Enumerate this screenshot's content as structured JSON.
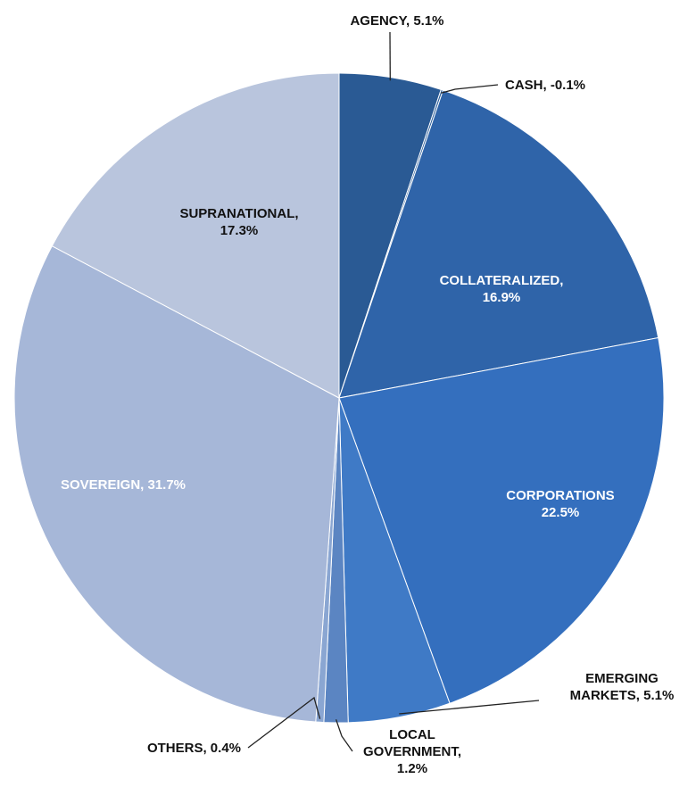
{
  "chart_data": {
    "type": "pie",
    "title": "",
    "slices": [
      {
        "name": "AGENCY",
        "value": 5.1,
        "label": [
          "AGENCY, 5.1%"
        ],
        "color": "#2a5a94"
      },
      {
        "name": "CASH",
        "value": -0.1,
        "label": [
          "CASH, -0.1%"
        ],
        "color": "#2c5e9a"
      },
      {
        "name": "COLLATERALIZED",
        "value": 16.9,
        "label": [
          "COLLATERALIZED,",
          "16.9%"
        ],
        "color": "#2f64a9"
      },
      {
        "name": "CORPORATIONS",
        "value": 22.5,
        "label": [
          "CORPORATIONS",
          "22.5%"
        ],
        "color": "#346fbe"
      },
      {
        "name": "EMERGING MARKETS",
        "value": 5.1,
        "label": [
          "EMERGING",
          "MARKETS, 5.1%"
        ],
        "color": "#3f7ac6"
      },
      {
        "name": "LOCAL GOVERNMENT",
        "value": 1.2,
        "label": [
          "LOCAL",
          "GOVERNMENT,",
          "1.2%"
        ],
        "color": "#5b85c2"
      },
      {
        "name": "OTHERS",
        "value": 0.4,
        "label": [
          "OTHERS, 0.4%"
        ],
        "color": "#8aa6d2"
      },
      {
        "name": "SOVEREIGN",
        "value": 31.7,
        "label": [
          "SOVEREIGN, 31.7%"
        ],
        "color": "#a6b7d8"
      },
      {
        "name": "SUPRANATIONAL",
        "value": 17.3,
        "label": [
          "SUPRANATIONAL,",
          "17.3%"
        ],
        "color": "#b9c5dd"
      }
    ]
  }
}
